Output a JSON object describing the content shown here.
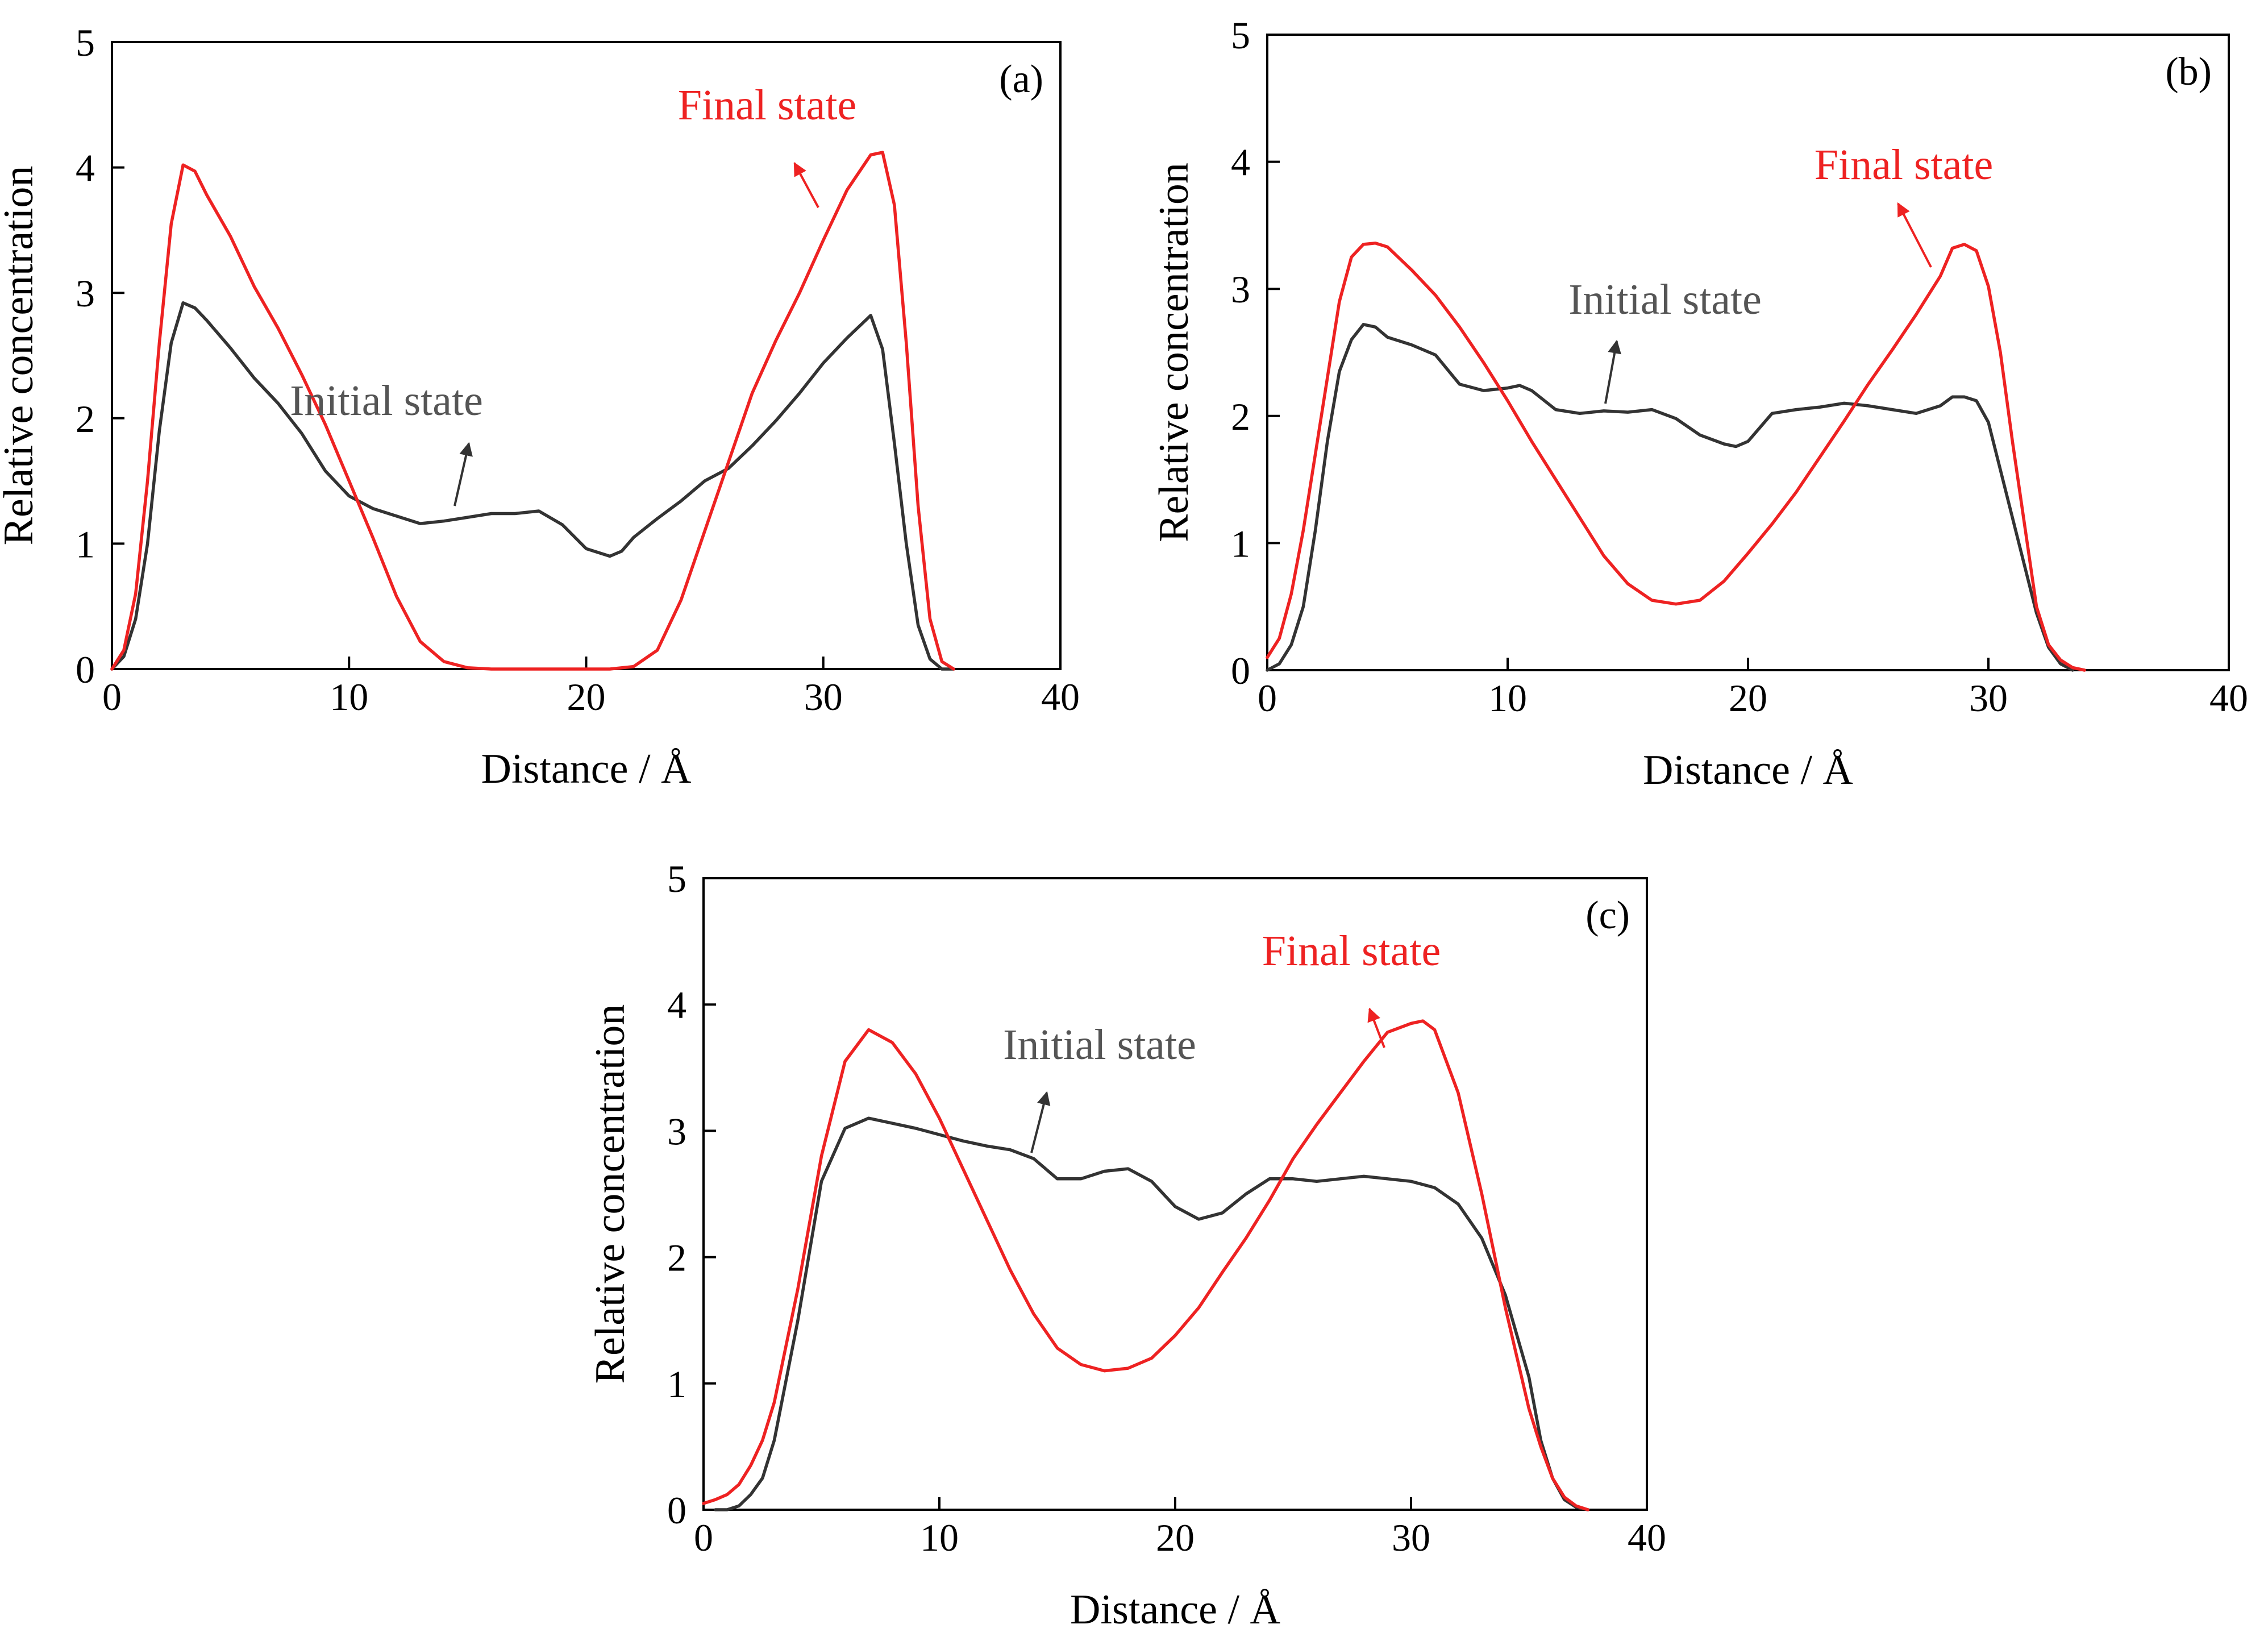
{
  "figure": {
    "colors": {
      "final": "#ee2222",
      "initial": "#333333",
      "initial_label": "#555555",
      "axis": "#000000"
    }
  },
  "chart_data": [
    {
      "type": "line",
      "panel_label": "(a)",
      "xlabel": "Distance / Å",
      "ylabel": "Relative concentration",
      "xlim": [
        0,
        40
      ],
      "ylim": [
        0,
        5
      ],
      "xticks": [
        0,
        10,
        20,
        30,
        40
      ],
      "yticks": [
        0,
        1,
        2,
        3,
        4,
        5
      ],
      "annotations": [
        {
          "text": "Final state",
          "series": "Final state",
          "pointer_x": 29.6,
          "pointer_y": 3.65
        },
        {
          "text": "Initial state",
          "series": "Initial state",
          "pointer_x": 14.8,
          "pointer_y": 1.27
        }
      ],
      "series": [
        {
          "name": "Initial state",
          "x": [
            0,
            0.5,
            1,
            1.5,
            2,
            2.5,
            3,
            3.5,
            4,
            5,
            6,
            7,
            8,
            9,
            10,
            11,
            12,
            13,
            14,
            15,
            16,
            17,
            18,
            19,
            20,
            21,
            21.5,
            22,
            23,
            24,
            25,
            26,
            27,
            28,
            29,
            30,
            31,
            32,
            32.5,
            33,
            33.5,
            34,
            34.5,
            35,
            35.5
          ],
          "y": [
            0,
            0.1,
            0.4,
            1,
            1.9,
            2.6,
            2.92,
            2.88,
            2.78,
            2.56,
            2.32,
            2.12,
            1.88,
            1.58,
            1.38,
            1.28,
            1.22,
            1.16,
            1.18,
            1.21,
            1.24,
            1.24,
            1.26,
            1.15,
            0.96,
            0.9,
            0.94,
            1.05,
            1.2,
            1.34,
            1.5,
            1.6,
            1.78,
            1.98,
            2.2,
            2.44,
            2.64,
            2.82,
            2.55,
            1.8,
            1,
            0.35,
            0.08,
            0,
            0
          ]
        },
        {
          "name": "Final state",
          "x": [
            0,
            0.5,
            1,
            1.5,
            2,
            2.5,
            3,
            3.5,
            4,
            5,
            6,
            7,
            8,
            9,
            10,
            11,
            12,
            13,
            14,
            15,
            16,
            17,
            18,
            19,
            20,
            21,
            22,
            23,
            24,
            25,
            26,
            27,
            28,
            29,
            30,
            31,
            32,
            32.5,
            33,
            33.5,
            34,
            34.5,
            35,
            35.5
          ],
          "y": [
            0,
            0.15,
            0.6,
            1.5,
            2.6,
            3.55,
            4.02,
            3.97,
            3.78,
            3.45,
            3.05,
            2.72,
            2.35,
            1.95,
            1.5,
            1.05,
            0.58,
            0.22,
            0.06,
            0.01,
            0,
            0,
            0,
            0,
            0,
            0,
            0.02,
            0.15,
            0.55,
            1.1,
            1.65,
            2.2,
            2.62,
            3,
            3.42,
            3.82,
            4.1,
            4.12,
            3.7,
            2.6,
            1.3,
            0.4,
            0.06,
            0
          ]
        }
      ]
    },
    {
      "type": "line",
      "panel_label": "(b)",
      "xlabel": "Distance / Å",
      "ylabel": "Relative concentration",
      "xlim": [
        0,
        40
      ],
      "ylim": [
        0,
        5
      ],
      "xticks": [
        0,
        10,
        20,
        30,
        40
      ],
      "yticks": [
        0,
        1,
        2,
        3,
        4,
        5
      ],
      "annotations": [
        {
          "text": "Final state",
          "series": "Final state",
          "pointer_x": 26.9,
          "pointer_y": 3.2
        },
        {
          "text": "Initial state",
          "series": "Initial state",
          "pointer_x": 14,
          "pointer_y": 2.05
        }
      ],
      "series": [
        {
          "name": "Initial state",
          "x": [
            0,
            0.5,
            1,
            1.5,
            2,
            2.5,
            3,
            3.5,
            4,
            4.5,
            5,
            6,
            7,
            8,
            9,
            10,
            10.5,
            11,
            12,
            13,
            14,
            15,
            16,
            17,
            18,
            19,
            19.5,
            20,
            21,
            22,
            23,
            24,
            25,
            26,
            27,
            28,
            28.5,
            29,
            29.5,
            30,
            31,
            32,
            32.5,
            33,
            33.5
          ],
          "y": [
            0,
            0.05,
            0.2,
            0.5,
            1.1,
            1.8,
            2.35,
            2.6,
            2.72,
            2.7,
            2.62,
            2.56,
            2.48,
            2.25,
            2.2,
            2.22,
            2.24,
            2.2,
            2.05,
            2.02,
            2.04,
            2.03,
            2.05,
            1.98,
            1.85,
            1.78,
            1.76,
            1.8,
            2.02,
            2.05,
            2.07,
            2.1,
            2.08,
            2.05,
            2.02,
            2.08,
            2.15,
            2.15,
            2.12,
            1.95,
            1.2,
            0.45,
            0.18,
            0.05,
            0
          ]
        },
        {
          "name": "Final state",
          "x": [
            0,
            0.5,
            1,
            1.5,
            2,
            2.5,
            3,
            3.5,
            4,
            4.5,
            5,
            6,
            7,
            8,
            9,
            10,
            11,
            12,
            13,
            14,
            15,
            16,
            17,
            18,
            19,
            20,
            21,
            22,
            23,
            24,
            25,
            26,
            27,
            28,
            28.5,
            29,
            29.5,
            30,
            30.5,
            31,
            32,
            32.5,
            33,
            33.5,
            34
          ],
          "y": [
            0.1,
            0.25,
            0.6,
            1.1,
            1.7,
            2.3,
            2.9,
            3.25,
            3.35,
            3.36,
            3.33,
            3.15,
            2.95,
            2.7,
            2.42,
            2.12,
            1.8,
            1.5,
            1.2,
            0.9,
            0.68,
            0.55,
            0.52,
            0.55,
            0.7,
            0.92,
            1.15,
            1.4,
            1.68,
            1.96,
            2.25,
            2.52,
            2.8,
            3.1,
            3.32,
            3.35,
            3.3,
            3.02,
            2.5,
            1.8,
            0.5,
            0.2,
            0.08,
            0.02,
            0
          ]
        }
      ]
    },
    {
      "type": "line",
      "panel_label": "(c)",
      "xlabel": "Distance / Å",
      "ylabel": "Relative concentration",
      "xlim": [
        0,
        40
      ],
      "ylim": [
        0,
        5
      ],
      "xticks": [
        0,
        10,
        20,
        30,
        40
      ],
      "yticks": [
        0,
        1,
        2,
        3,
        4,
        5
      ],
      "annotations": [
        {
          "text": "Final state",
          "series": "Final state",
          "pointer_x": 28,
          "pointer_y": 3.6
        },
        {
          "text": "Initial state",
          "series": "Initial state",
          "pointer_x": 14,
          "pointer_y": 2.8
        }
      ],
      "series": [
        {
          "name": "Initial state",
          "x": [
            0.5,
            1,
            1.5,
            2,
            2.5,
            3,
            4,
            5,
            6,
            7,
            8,
            9,
            10,
            11,
            12,
            13,
            14,
            15,
            16,
            17,
            18,
            19,
            20,
            21,
            22,
            23,
            24,
            25,
            26,
            27,
            28,
            29,
            30,
            31,
            32,
            33,
            34,
            35,
            35.5,
            36,
            36.5,
            37,
            37.5
          ],
          "y": [
            0,
            0,
            0.03,
            0.12,
            0.25,
            0.55,
            1.5,
            2.6,
            3.02,
            3.1,
            3.06,
            3.02,
            2.97,
            2.92,
            2.88,
            2.85,
            2.78,
            2.62,
            2.62,
            2.68,
            2.7,
            2.6,
            2.4,
            2.3,
            2.35,
            2.5,
            2.62,
            2.62,
            2.6,
            2.62,
            2.64,
            2.62,
            2.6,
            2.55,
            2.42,
            2.15,
            1.7,
            1.05,
            0.55,
            0.25,
            0.08,
            0.02,
            0
          ]
        },
        {
          "name": "Final state",
          "x": [
            0,
            0.5,
            1,
            1.5,
            2,
            2.5,
            3,
            4,
            5,
            6,
            7,
            8,
            9,
            10,
            11,
            12,
            13,
            14,
            15,
            16,
            17,
            18,
            19,
            20,
            21,
            22,
            23,
            24,
            25,
            26,
            27,
            28,
            29,
            30,
            30.5,
            31,
            32,
            33,
            34,
            35,
            35.5,
            36,
            36.5,
            37,
            37.5
          ],
          "y": [
            0.05,
            0.08,
            0.12,
            0.2,
            0.35,
            0.55,
            0.85,
            1.75,
            2.8,
            3.55,
            3.8,
            3.7,
            3.45,
            3.1,
            2.7,
            2.3,
            1.9,
            1.55,
            1.28,
            1.15,
            1.1,
            1.12,
            1.2,
            1.38,
            1.6,
            1.88,
            2.15,
            2.45,
            2.78,
            3.05,
            3.3,
            3.55,
            3.78,
            3.85,
            3.87,
            3.8,
            3.3,
            2.5,
            1.6,
            0.8,
            0.5,
            0.25,
            0.1,
            0.03,
            0
          ]
        }
      ]
    }
  ]
}
